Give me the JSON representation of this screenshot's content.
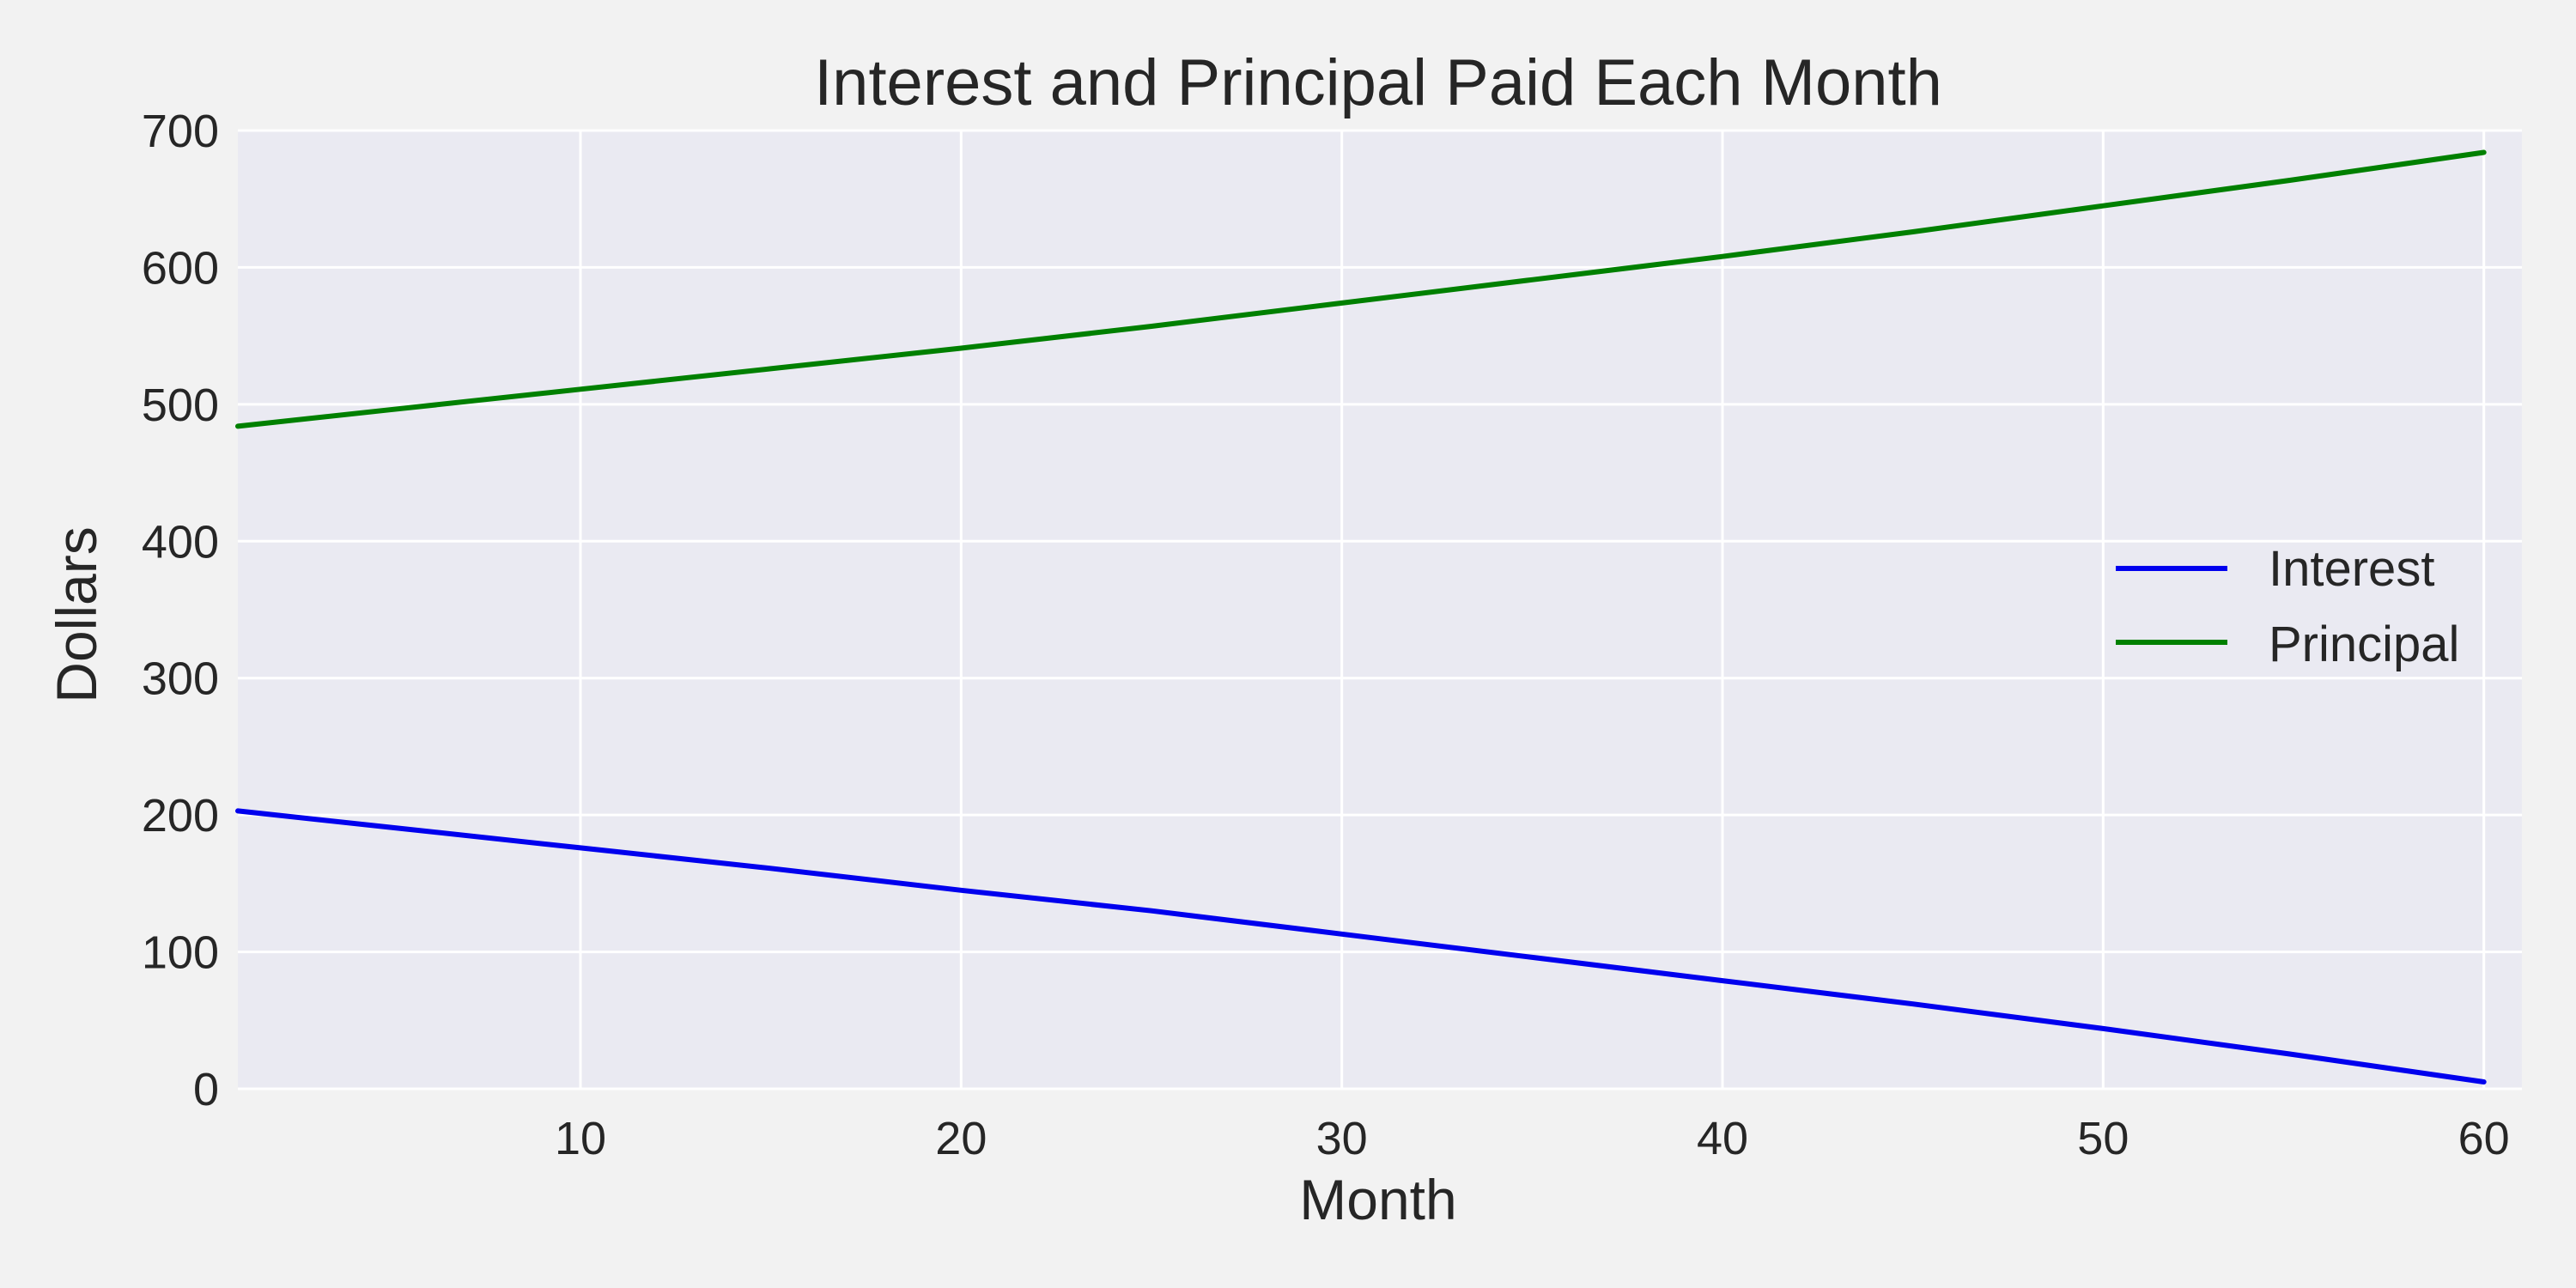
{
  "chart_data": {
    "type": "line",
    "title": "Interest and Principal Paid Each Month",
    "xlabel": "Month",
    "ylabel": "Dollars",
    "xlim": [
      1,
      61
    ],
    "ylim": [
      0,
      700
    ],
    "x_ticks": [
      10,
      20,
      30,
      40,
      50,
      60
    ],
    "y_ticks": [
      0,
      100,
      200,
      300,
      400,
      500,
      600,
      700
    ],
    "grid": true,
    "legend_position": "center-right",
    "plot_background": "#eaeaf2",
    "figure_background": "#f2f2f2",
    "grid_color": "#ffffff",
    "x": [
      1,
      5,
      10,
      15,
      20,
      25,
      30,
      35,
      40,
      45,
      50,
      55,
      60
    ],
    "series": [
      {
        "name": "Interest",
        "color": "#0000ee",
        "values": [
          203,
          191,
          176,
          161,
          145,
          130,
          113,
          96,
          79,
          62,
          44,
          25,
          5
        ]
      },
      {
        "name": "Principal",
        "color": "#008000",
        "values": [
          484,
          496,
          511,
          526,
          541,
          557,
          574,
          591,
          608,
          626,
          645,
          664,
          684
        ]
      }
    ]
  }
}
